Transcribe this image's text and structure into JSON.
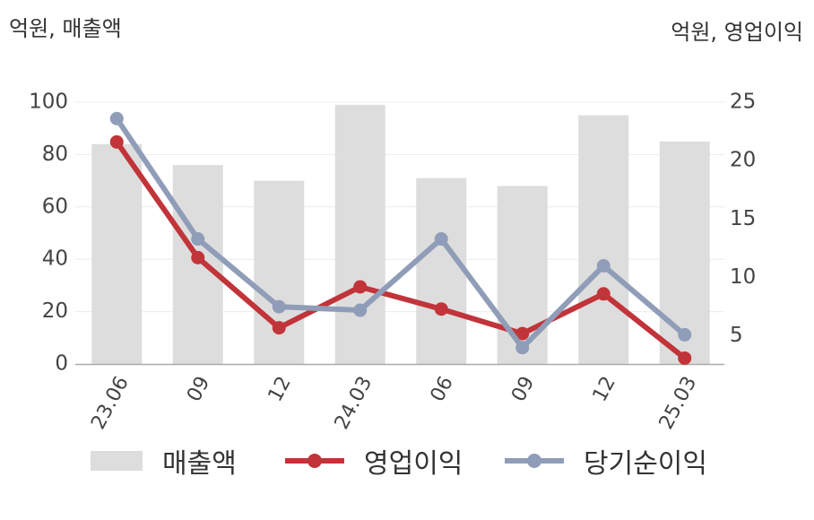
{
  "units": {
    "left": "억원, 매출액",
    "right": "억원, 영업이익"
  },
  "chart_data": {
    "type": "bar+line",
    "categories": [
      "23.06",
      "09",
      "12",
      "24.03",
      "06",
      "09",
      "12",
      "25.03"
    ],
    "series": [
      {
        "name": "매출액",
        "type": "bar",
        "axis": "left",
        "color": "#dddddd",
        "values": [
          84,
          76,
          70,
          99,
          71,
          68,
          95,
          85
        ]
      },
      {
        "name": "영업이익",
        "type": "line",
        "axis": "right",
        "color": "#c1343a",
        "values": [
          21.6,
          11.7,
          5.7,
          9.2,
          7.3,
          5.2,
          8.6,
          3.1
        ]
      },
      {
        "name": "당기순이익",
        "type": "line",
        "axis": "right",
        "color": "#8f9db8",
        "values": [
          23.6,
          13.3,
          7.5,
          7.2,
          13.3,
          4.0,
          11.0,
          5.1
        ]
      }
    ],
    "left_axis": {
      "ylim": [
        0,
        100
      ],
      "ticks": [
        0,
        20,
        40,
        60,
        80,
        100
      ]
    },
    "right_axis": {
      "ylim": [
        2.6,
        25
      ],
      "ticks": [
        5,
        10,
        15,
        20,
        25
      ]
    },
    "grid": true,
    "legend": "bottom"
  }
}
